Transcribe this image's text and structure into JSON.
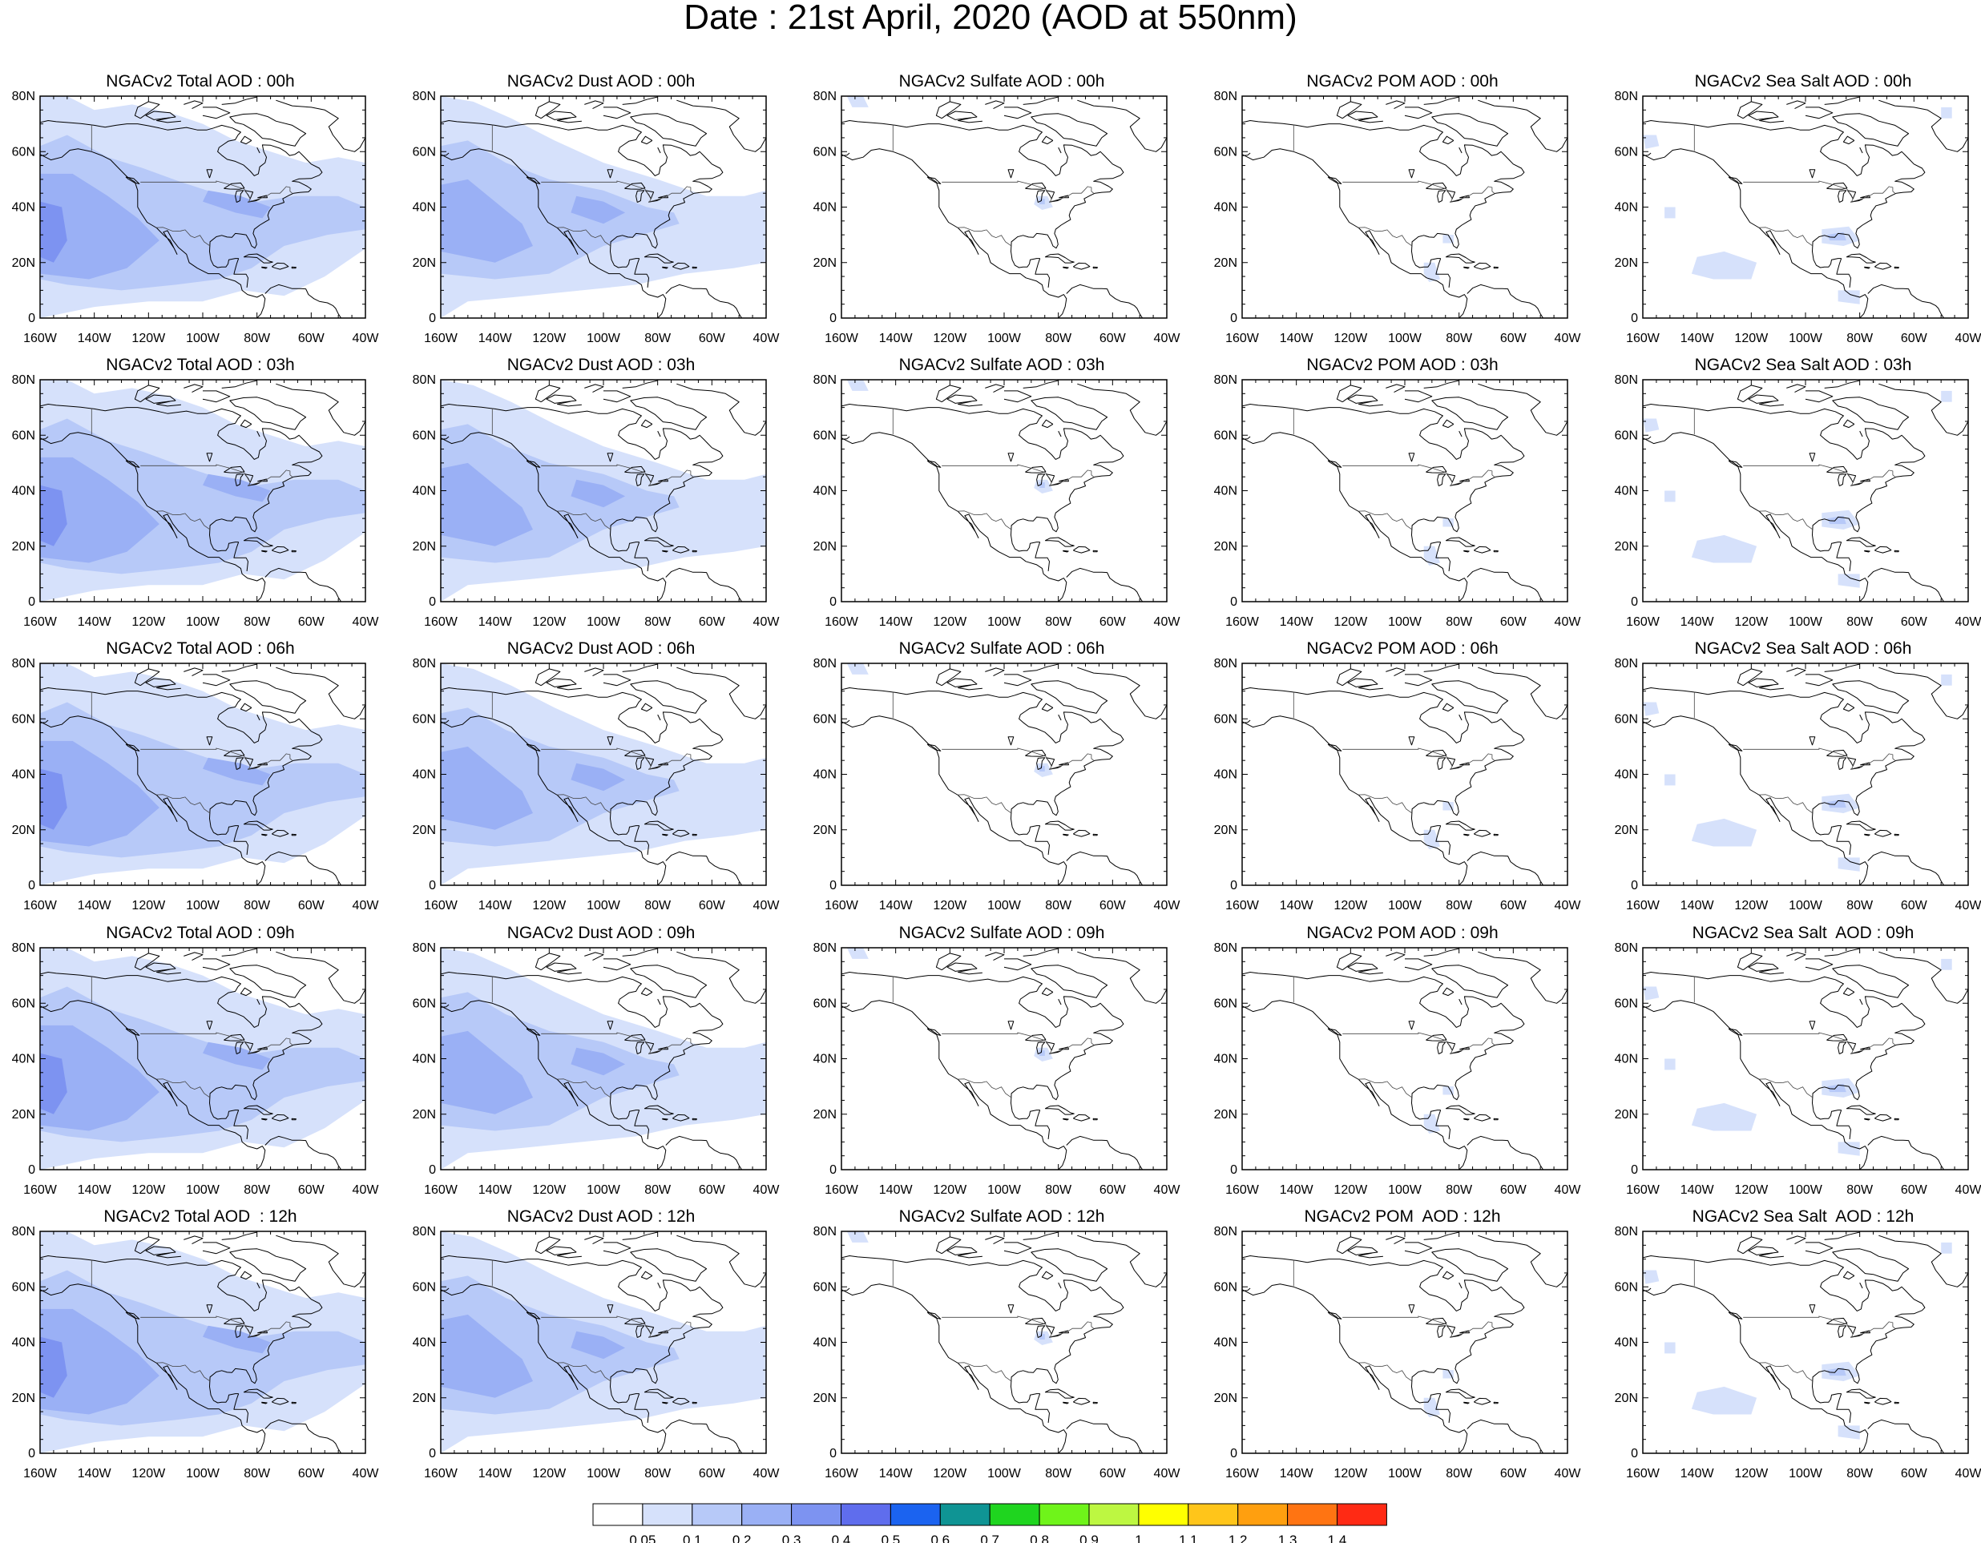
{
  "title": "Date : 21st April, 2020 (AOD at 550nm)",
  "lat_labels": [
    "80N",
    "60N",
    "40N",
    "20N",
    "0"
  ],
  "lon_labels": [
    "160W",
    "140W",
    "120W",
    "100W",
    "80W",
    "60W",
    "40W"
  ],
  "panels": [
    {
      "row": 0,
      "col": 0,
      "species": "total",
      "title": "NGACv2 Total AOD : 00h"
    },
    {
      "row": 0,
      "col": 1,
      "species": "dust",
      "title": "NGACv2 Dust AOD : 00h"
    },
    {
      "row": 0,
      "col": 2,
      "species": "sulfate",
      "title": "NGACv2 Sulfate AOD : 00h"
    },
    {
      "row": 0,
      "col": 3,
      "species": "pom",
      "title": "NGACv2 POM AOD : 00h"
    },
    {
      "row": 0,
      "col": 4,
      "species": "seasalt",
      "title": "NGACv2 Sea Salt AOD : 00h"
    },
    {
      "row": 1,
      "col": 0,
      "species": "total",
      "title": "NGACv2 Total AOD : 03h"
    },
    {
      "row": 1,
      "col": 1,
      "species": "dust",
      "title": "NGACv2 Dust AOD : 03h"
    },
    {
      "row": 1,
      "col": 2,
      "species": "sulfate",
      "title": "NGACv2 Sulfate AOD : 03h"
    },
    {
      "row": 1,
      "col": 3,
      "species": "pom",
      "title": "NGACv2 POM AOD : 03h"
    },
    {
      "row": 1,
      "col": 4,
      "species": "seasalt",
      "title": "NGACv2 Sea Salt AOD : 03h"
    },
    {
      "row": 2,
      "col": 0,
      "species": "total",
      "title": "NGACv2 Total AOD : 06h"
    },
    {
      "row": 2,
      "col": 1,
      "species": "dust",
      "title": "NGACv2 Dust AOD : 06h"
    },
    {
      "row": 2,
      "col": 2,
      "species": "sulfate",
      "title": "NGACv2 Sulfate AOD : 06h"
    },
    {
      "row": 2,
      "col": 3,
      "species": "pom",
      "title": "NGACv2 POM AOD : 06h"
    },
    {
      "row": 2,
      "col": 4,
      "species": "seasalt",
      "title": "NGACv2 Sea Salt AOD : 06h"
    },
    {
      "row": 3,
      "col": 0,
      "species": "total",
      "title": "NGACv2 Total AOD : 09h"
    },
    {
      "row": 3,
      "col": 1,
      "species": "dust",
      "title": "NGACv2 Dust AOD : 09h"
    },
    {
      "row": 3,
      "col": 2,
      "species": "sulfate",
      "title": "NGACv2 Sulfate AOD : 09h"
    },
    {
      "row": 3,
      "col": 3,
      "species": "pom",
      "title": "NGACv2 POM AOD : 09h"
    },
    {
      "row": 3,
      "col": 4,
      "species": "seasalt",
      "title": "NGACv2 Sea Salt  AOD : 09h"
    },
    {
      "row": 4,
      "col": 0,
      "species": "total",
      "title": "NGACv2 Total AOD  : 12h"
    },
    {
      "row": 4,
      "col": 1,
      "species": "dust",
      "title": "NGACv2 Dust AOD : 12h"
    },
    {
      "row": 4,
      "col": 2,
      "species": "sulfate",
      "title": "NGACv2 Sulfate AOD : 12h"
    },
    {
      "row": 4,
      "col": 3,
      "species": "pom",
      "title": "NGACv2 POM  AOD : 12h"
    },
    {
      "row": 4,
      "col": 4,
      "species": "seasalt",
      "title": "NGACv2 Sea Salt  AOD : 12h"
    }
  ],
  "colorbar": {
    "labels": [
      "0.05",
      "0.1",
      "0.2",
      "0.3",
      "0.4",
      "0.5",
      "0.6",
      "0.7",
      "0.8",
      "0.9",
      "1",
      "1.1",
      "1.2",
      "1.3",
      "1.4"
    ],
    "colors": [
      "#ffffff",
      "#d6e1fb",
      "#b7c9f8",
      "#9ab0f5",
      "#7d93f1",
      "#5f6ded",
      "#1b63f0",
      "#0f9494",
      "#1fd51f",
      "#6ff41a",
      "#bdf741",
      "#ffff00",
      "#ffc51a",
      "#ff9f0f",
      "#ff7412",
      "#ff2a14"
    ]
  }
}
